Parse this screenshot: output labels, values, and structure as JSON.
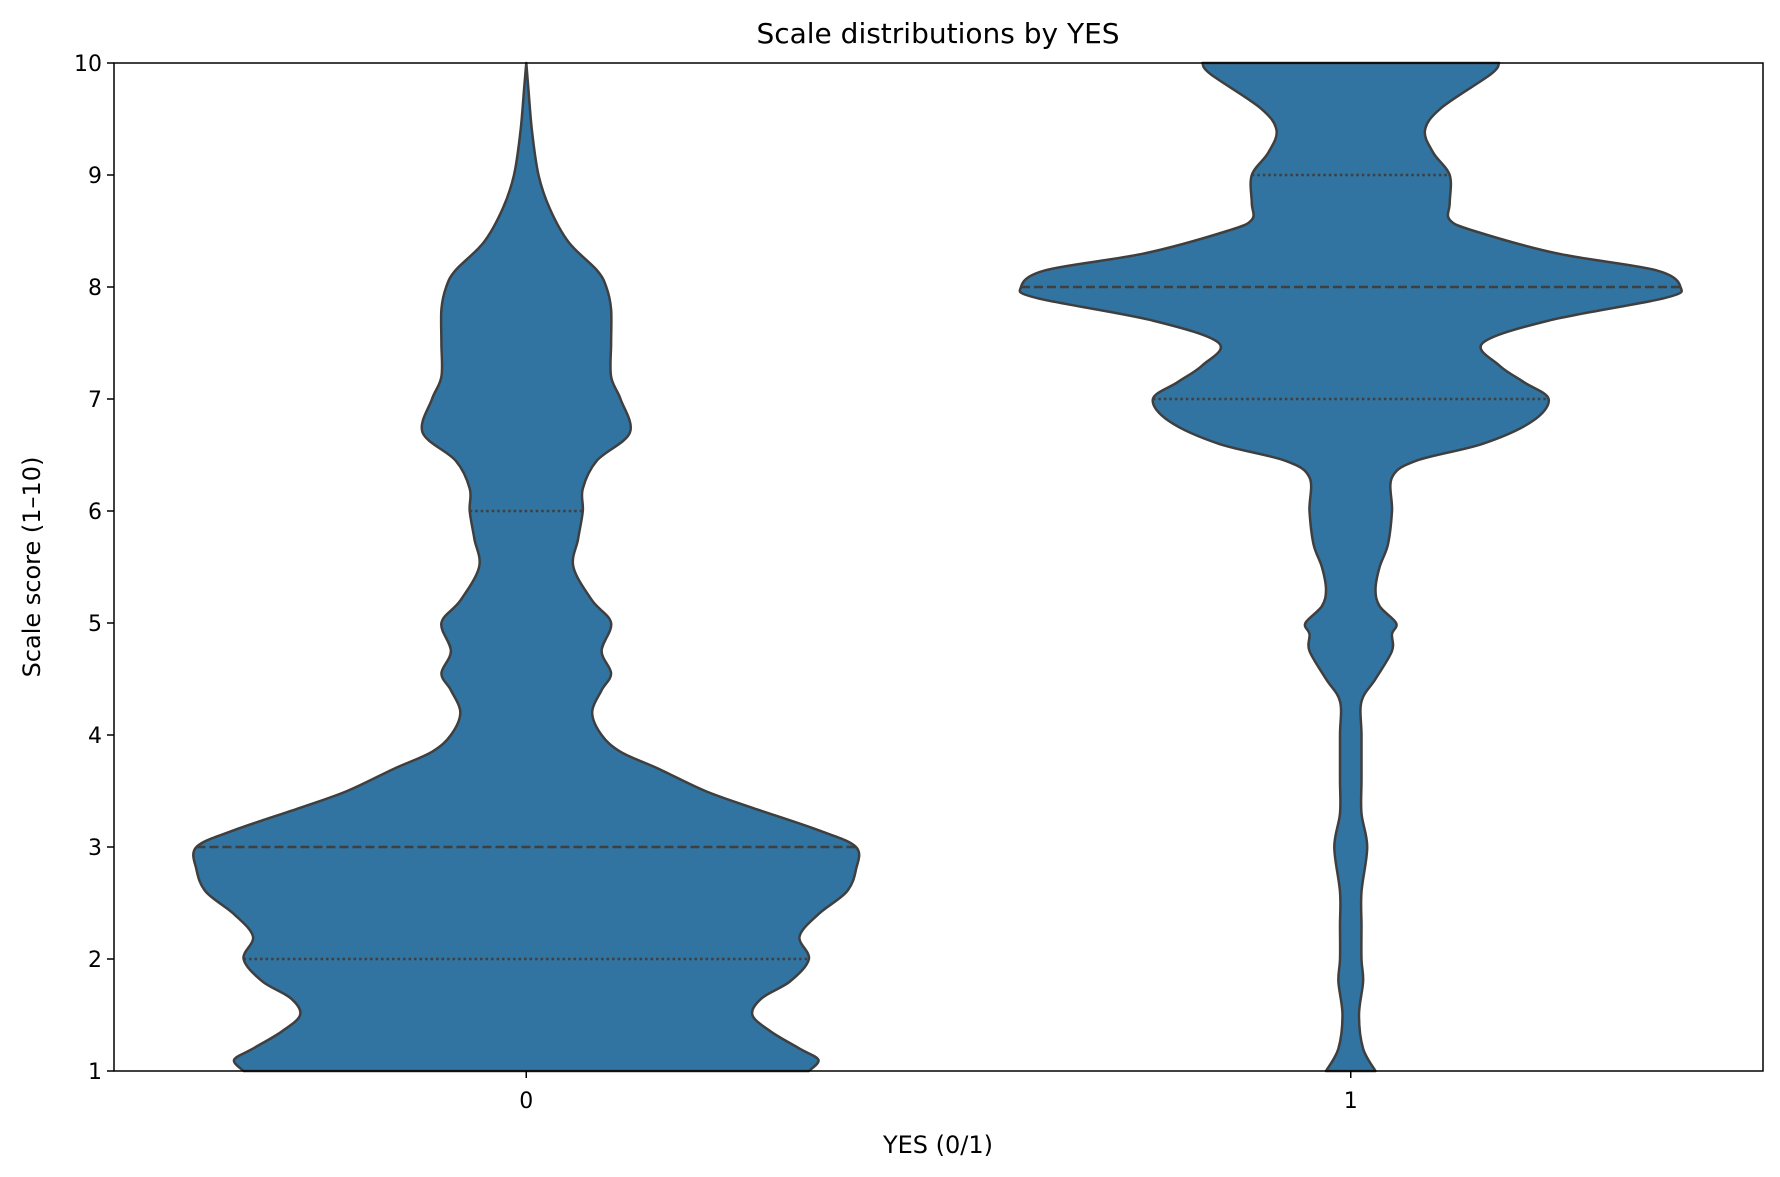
{
  "chart_data": {
    "type": "violin",
    "title": "Scale distributions by YES",
    "xlabel": "YES (0/1)",
    "ylabel": "Scale score (1–10)",
    "ylim": [
      1,
      10
    ],
    "yticks": [
      "1",
      "2",
      "3",
      "4",
      "5",
      "6",
      "7",
      "8",
      "9",
      "10"
    ],
    "grid": false,
    "fill_color": "#3274a1",
    "edge_color": "#3f3f3f",
    "categories": [
      "0",
      "1"
    ],
    "violins": [
      {
        "category": "0",
        "quartiles": {
          "q1": 2,
          "median": 3,
          "q3": 6
        },
        "density": [
          [
            1.0,
            0.3
          ],
          [
            1.1,
            0.31
          ],
          [
            1.2,
            0.29
          ],
          [
            1.35,
            0.26
          ],
          [
            1.5,
            0.24
          ],
          [
            1.65,
            0.25
          ],
          [
            1.8,
            0.28
          ],
          [
            2.0,
            0.3
          ],
          [
            2.2,
            0.29
          ],
          [
            2.4,
            0.31
          ],
          [
            2.6,
            0.34
          ],
          [
            2.8,
            0.35
          ],
          [
            3.0,
            0.35
          ],
          [
            3.15,
            0.31
          ],
          [
            3.35,
            0.24
          ],
          [
            3.5,
            0.19
          ],
          [
            3.7,
            0.14
          ],
          [
            3.85,
            0.1
          ],
          [
            4.0,
            0.08
          ],
          [
            4.2,
            0.07
          ],
          [
            4.4,
            0.08
          ],
          [
            4.55,
            0.09
          ],
          [
            4.75,
            0.08
          ],
          [
            5.0,
            0.09
          ],
          [
            5.2,
            0.07
          ],
          [
            5.5,
            0.05
          ],
          [
            5.75,
            0.055
          ],
          [
            6.0,
            0.06
          ],
          [
            6.2,
            0.06
          ],
          [
            6.45,
            0.075
          ],
          [
            6.7,
            0.11
          ],
          [
            7.0,
            0.1
          ],
          [
            7.2,
            0.09
          ],
          [
            7.5,
            0.09
          ],
          [
            7.8,
            0.09
          ],
          [
            8.0,
            0.085
          ],
          [
            8.15,
            0.075
          ],
          [
            8.4,
            0.045
          ],
          [
            8.7,
            0.025
          ],
          [
            9.0,
            0.013
          ],
          [
            9.4,
            0.006
          ],
          [
            9.8,
            0.002
          ],
          [
            10.0,
            0.0
          ]
        ]
      },
      {
        "category": "1",
        "quartiles": {
          "q1": 7,
          "median": 8,
          "q3": 9
        },
        "density": [
          [
            1.0,
            0.03
          ],
          [
            1.2,
            0.015
          ],
          [
            1.5,
            0.01
          ],
          [
            1.8,
            0.015
          ],
          [
            2.0,
            0.013
          ],
          [
            2.3,
            0.013
          ],
          [
            2.6,
            0.013
          ],
          [
            3.0,
            0.02
          ],
          [
            3.3,
            0.013
          ],
          [
            3.6,
            0.013
          ],
          [
            4.0,
            0.013
          ],
          [
            4.3,
            0.013
          ],
          [
            4.5,
            0.03
          ],
          [
            4.75,
            0.05
          ],
          [
            4.9,
            0.05
          ],
          [
            5.0,
            0.055
          ],
          [
            5.15,
            0.035
          ],
          [
            5.3,
            0.03
          ],
          [
            5.5,
            0.035
          ],
          [
            5.7,
            0.045
          ],
          [
            6.0,
            0.05
          ],
          [
            6.3,
            0.05
          ],
          [
            6.45,
            0.08
          ],
          [
            6.6,
            0.16
          ],
          [
            6.8,
            0.22
          ],
          [
            7.0,
            0.24
          ],
          [
            7.15,
            0.21
          ],
          [
            7.3,
            0.18
          ],
          [
            7.5,
            0.16
          ],
          [
            7.7,
            0.24
          ],
          [
            7.9,
            0.38
          ],
          [
            8.0,
            0.4
          ],
          [
            8.15,
            0.37
          ],
          [
            8.3,
            0.25
          ],
          [
            8.5,
            0.15
          ],
          [
            8.6,
            0.12
          ],
          [
            8.75,
            0.12
          ],
          [
            9.0,
            0.12
          ],
          [
            9.2,
            0.1
          ],
          [
            9.4,
            0.09
          ],
          [
            9.6,
            0.11
          ],
          [
            9.9,
            0.17
          ],
          [
            10.0,
            0.18
          ]
        ]
      }
    ]
  }
}
